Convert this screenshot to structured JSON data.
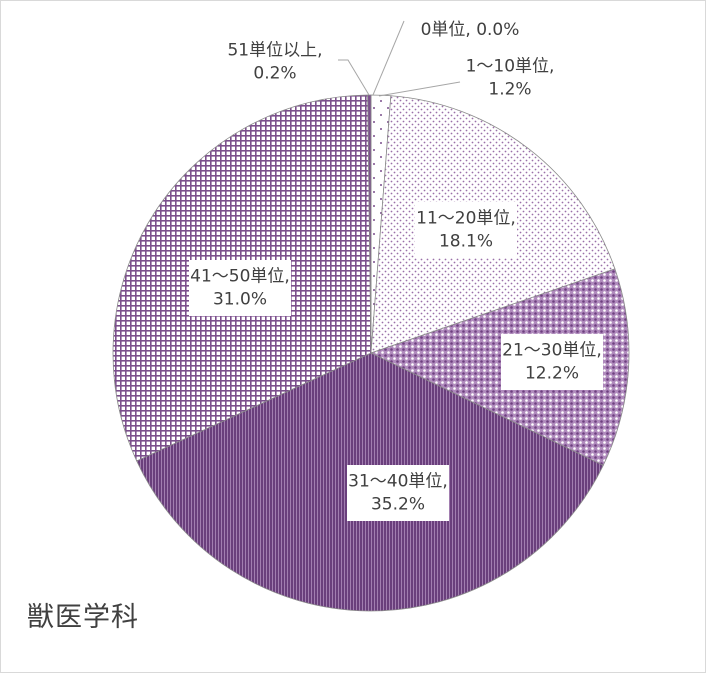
{
  "caption": "獣医学科",
  "colors": {
    "accent": "#7b4f8c",
    "slice_border": "#ffffff",
    "text": "#404040"
  },
  "chart_data": {
    "type": "pie",
    "title": "",
    "slices": [
      {
        "label": "0単位",
        "value": 0.0,
        "pct": "0.0%",
        "pattern": "none"
      },
      {
        "label": "1～10単位",
        "value": 1.2,
        "pct": "1.2%",
        "pattern": "sparse-dots"
      },
      {
        "label": "11～20単位",
        "value": 18.1,
        "pct": "18.1%",
        "pattern": "light-dots"
      },
      {
        "label": "21～30単位",
        "value": 12.2,
        "pct": "12.2%",
        "pattern": "dense-dots"
      },
      {
        "label": "31～40単位",
        "value": 35.2,
        "pct": "35.2%",
        "pattern": "vertical-stripes"
      },
      {
        "label": "41～50単位",
        "value": 31.0,
        "pct": "31.0%",
        "pattern": "grid"
      },
      {
        "label": "51単位以上",
        "value": 0.2,
        "pct": "0.2%",
        "pattern": "solid"
      }
    ]
  }
}
